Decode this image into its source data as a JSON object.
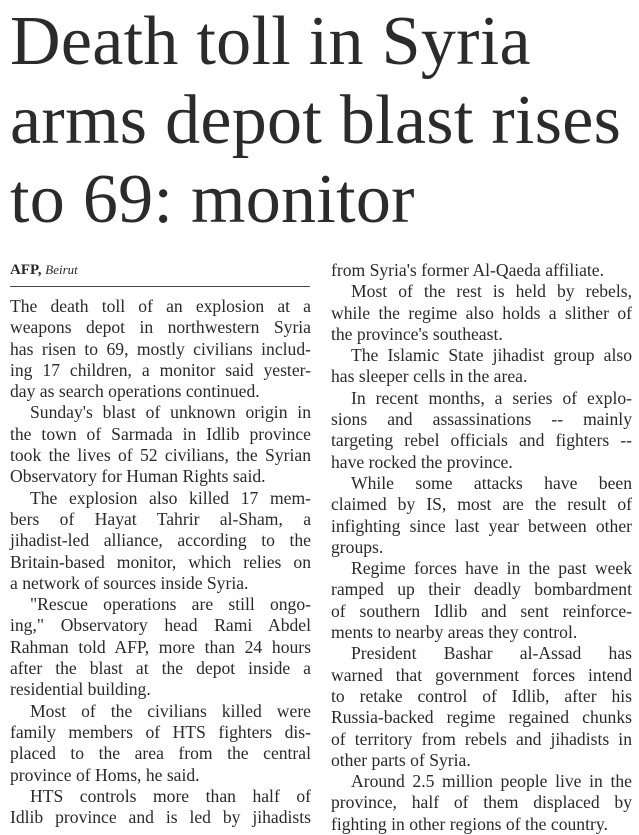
{
  "headline": [
    "Death toll in Syria",
    "arms depot blast rises",
    "to 69: monitor"
  ],
  "byline": {
    "agency": "AFP,",
    "place": "Beirut"
  },
  "columns": [
    [
      {
        "indent": false,
        "lines": [
          "The death toll of an explosion at a",
          "weapons depot in northwestern Syria",
          "has risen to 69, mostly civilians includ-",
          "ing 17 children, a monitor said yester-",
          "day as search operations continued."
        ]
      },
      {
        "indent": true,
        "lines": [
          "Sunday's blast of unknown origin in",
          "the town of Sarmada in Idlib province",
          "took the lives of 52 civilians, the Syrian",
          "Observatory for Human Rights said."
        ]
      },
      {
        "indent": true,
        "lines": [
          "The explosion also killed 17 mem-",
          "bers of Hayat Tahrir al-Sham, a",
          "jihadist-led alliance, according to the",
          "Britain-based monitor, which relies on",
          "a network of sources inside Syria."
        ]
      },
      {
        "indent": true,
        "lines": [
          "\"Rescue operations are still ongo-",
          "ing,\" Observatory head Rami Abdel",
          "Rahman told AFP, more than 24 hours",
          "after the blast at the depot inside a",
          "residential building."
        ]
      },
      {
        "indent": true,
        "lines": [
          "Most of the civilians killed were",
          "family members of HTS fighters dis-",
          "placed to the area from the central",
          "province of Homs, he said."
        ]
      },
      {
        "indent": true,
        "continues": true,
        "lines": [
          "HTS controls more than half of",
          "Idlib province and is led by jihadists"
        ]
      }
    ],
    [
      {
        "indent": false,
        "lines": [
          "from Syria's former Al-Qaeda affiliate."
        ]
      },
      {
        "indent": true,
        "lines": [
          "Most of the rest is held by rebels,",
          "while the regime also holds a slither of",
          "the province's southeast."
        ]
      },
      {
        "indent": true,
        "lines": [
          "The Islamic State jihadist group also",
          "has sleeper cells in the area."
        ]
      },
      {
        "indent": true,
        "lines": [
          "In recent months, a series of explo-",
          "sions and assassinations -- mainly",
          "targeting rebel officials and fighters --",
          "have rocked the province."
        ]
      },
      {
        "indent": true,
        "lines": [
          "While some attacks have been",
          "claimed by IS, most are the result of",
          "infighting since last year between other",
          "groups."
        ]
      },
      {
        "indent": true,
        "lines": [
          "Regime forces have in the past week",
          "ramped up their deadly bombardment",
          "of southern Idlib and sent reinforce-",
          "ments to nearby areas they control."
        ]
      },
      {
        "indent": true,
        "lines": [
          "President Bashar al-Assad has",
          "warned that government forces intend",
          "to retake control of Idlib, after his",
          "Russia-backed regime regained chunks",
          "of territory from rebels and jihadists in",
          "other parts of Syria."
        ]
      },
      {
        "indent": true,
        "lines": [
          "Around 2.5 million people live in the",
          "province, half of them displaced by",
          "fighting in other regions of the country."
        ]
      }
    ]
  ]
}
